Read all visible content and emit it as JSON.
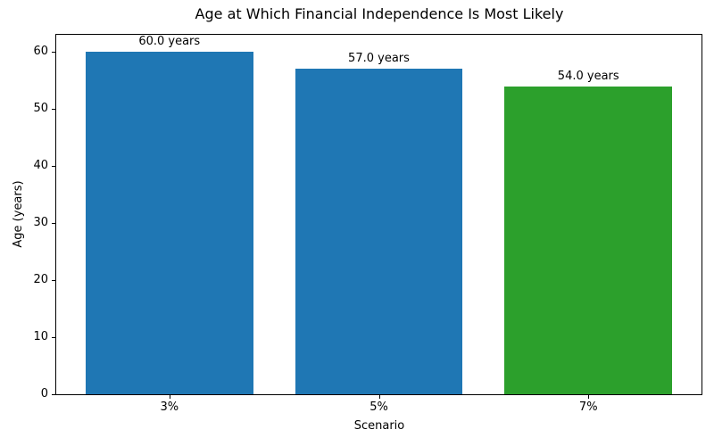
{
  "figure": {
    "background": "#ffffff"
  },
  "chart_data": {
    "type": "bar",
    "title": "Age at Which Financial Independence Is Most Likely",
    "xlabel": "Scenario",
    "ylabel": "Age (years)",
    "categories": [
      "3%",
      "5%",
      "7%"
    ],
    "values": [
      60.0,
      57.0,
      54.0
    ],
    "bar_labels": [
      "60.0 years",
      "57.0 years",
      "54.0 years"
    ],
    "bar_colors": [
      "#1f77b4",
      "#1f77b4",
      "#2ca02c"
    ],
    "yticks": [
      0,
      10,
      20,
      30,
      40,
      50,
      60
    ],
    "ylim": [
      0,
      63
    ],
    "xlim": [
      -0.54,
      2.54
    ],
    "bar_width_units": 0.8,
    "grid": false,
    "legend": "none",
    "spine_color": "#000000"
  }
}
